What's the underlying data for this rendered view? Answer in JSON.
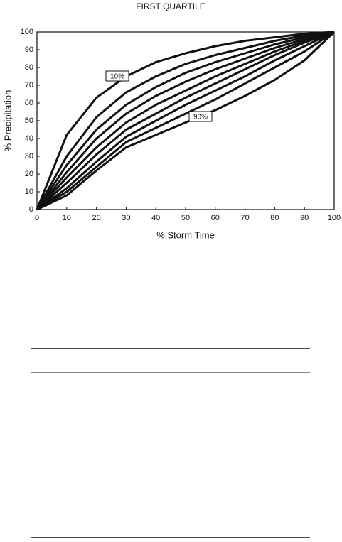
{
  "chart_data": {
    "type": "line",
    "title": "FIRST QUARTILE",
    "x_label": "% Storm Time",
    "y_label": "% Precipitation",
    "x": [
      0,
      10,
      20,
      30,
      40,
      50,
      60,
      70,
      80,
      90,
      100
    ],
    "xlim": [
      0,
      100
    ],
    "ylim": [
      0,
      100
    ],
    "xticks": [
      0,
      10,
      20,
      30,
      40,
      50,
      60,
      70,
      80,
      90,
      100
    ],
    "yticks": [
      0,
      10,
      20,
      30,
      40,
      50,
      60,
      70,
      80,
      90,
      100
    ],
    "grid": false,
    "series": [
      {
        "name": "10%",
        "color": "#111111",
        "values": [
          0,
          42,
          63,
          75,
          83,
          88,
          92,
          95,
          97,
          99,
          100
        ]
      },
      {
        "color": "#111111",
        "values": [
          0,
          30,
          52,
          66,
          75,
          82,
          87,
          91,
          95,
          98,
          100
        ]
      },
      {
        "color": "#111111",
        "values": [
          0,
          25,
          45,
          59,
          69,
          77,
          83,
          88,
          93,
          97,
          100
        ]
      },
      {
        "color": "#111111",
        "values": [
          0,
          21,
          40,
          54,
          64,
          72,
          79,
          85,
          91,
          96,
          100
        ]
      },
      {
        "color": "#111111",
        "values": [
          0,
          18,
          35,
          49,
          59,
          67,
          75,
          82,
          89,
          95,
          100
        ]
      },
      {
        "color": "#111111",
        "values": [
          0,
          15,
          31,
          45,
          54,
          63,
          71,
          79,
          87,
          94,
          100
        ]
      },
      {
        "color": "#111111",
        "values": [
          0,
          12,
          27,
          41,
          50,
          59,
          67,
          75,
          84,
          92,
          100
        ]
      },
      {
        "color": "#111111",
        "values": [
          0,
          10,
          24,
          38,
          46,
          54,
          62,
          71,
          80,
          89,
          100
        ]
      },
      {
        "name": "90%",
        "color": "#111111",
        "values": [
          0,
          8,
          22,
          35,
          42,
          49,
          56,
          64,
          73,
          84,
          100
        ]
      }
    ]
  }
}
